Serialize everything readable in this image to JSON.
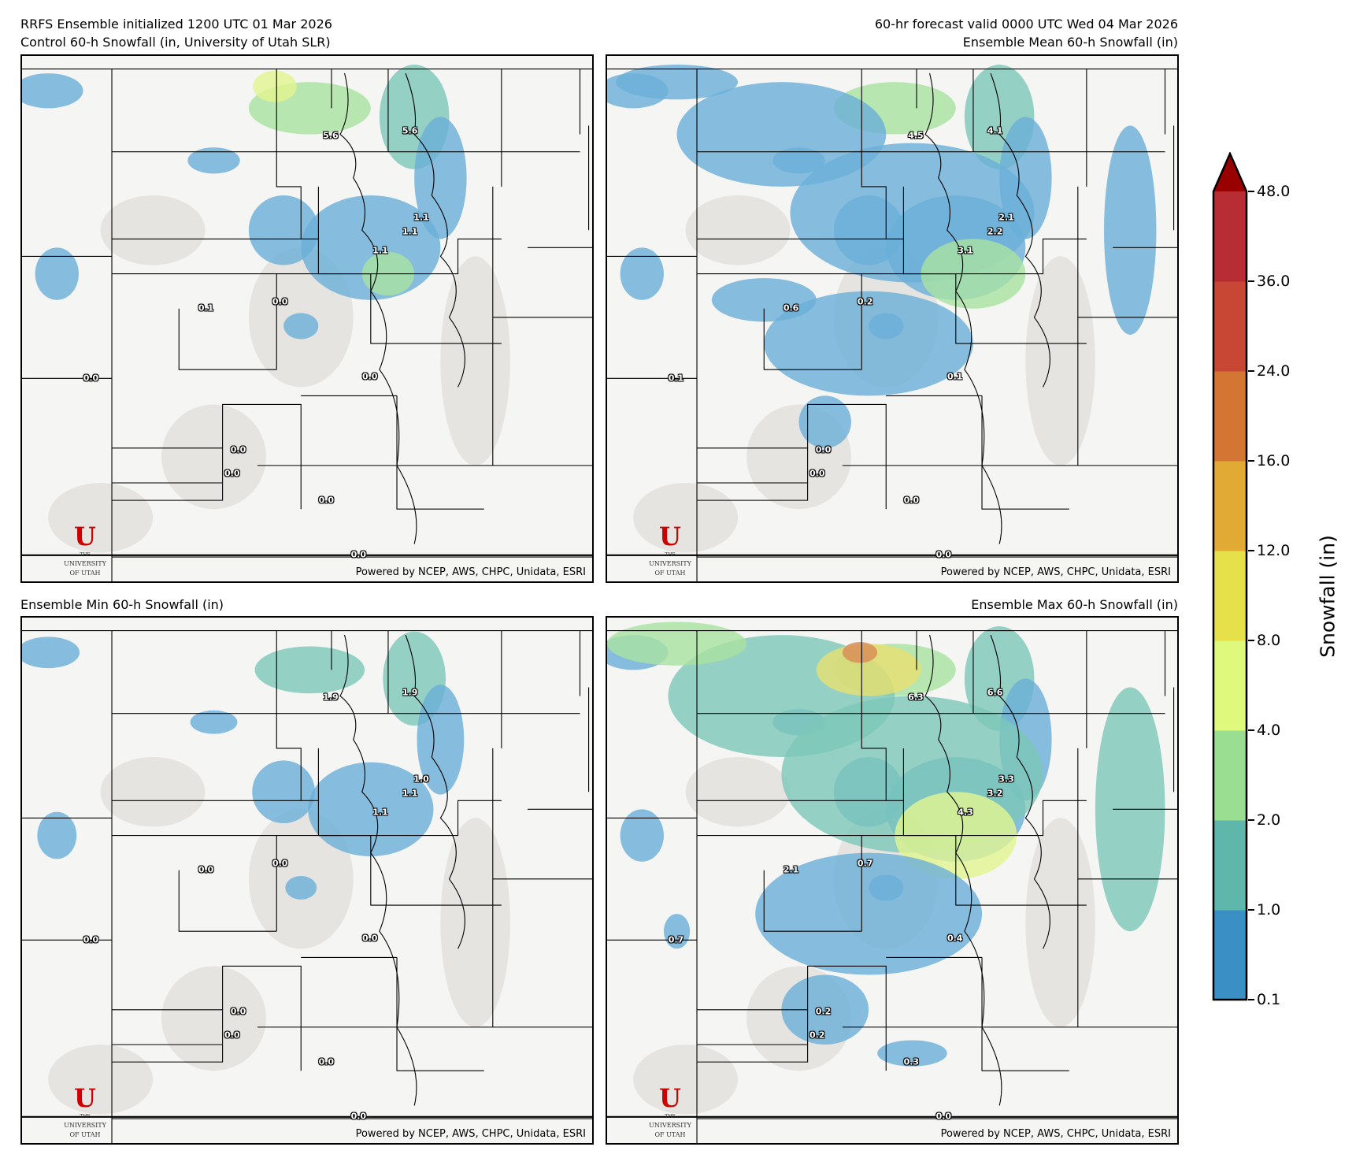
{
  "header": {
    "left_line1": "RRFS Ensemble initialized 1200 UTC 01 Mar 2026",
    "right_line1": "60-hr forecast valid 0000 UTC Wed 04 Mar 2026"
  },
  "credit": "Powered by NCEP, AWS, CHPC, Unidata, ESRI",
  "logo": {
    "the": "THE",
    "u": "U",
    "university": "UNIVERSITY",
    "of_utah": "OF UTAH"
  },
  "chart_data": [
    {
      "type": "heatmap",
      "title": "Control 60-h Snowfall (in, University of Utah SLR)",
      "point_labels": [
        "5.6",
        "5.6",
        "1.1",
        "1.1",
        "1.1",
        "0.1",
        "0.0",
        "0.0",
        "0.0",
        "0.0",
        "0.0",
        "0.0",
        "0.0"
      ]
    },
    {
      "type": "heatmap",
      "title": "Ensemble Mean 60-h Snowfall (in)",
      "point_labels": [
        "4.5",
        "4.1",
        "2.1",
        "2.2",
        "3.1",
        "0.6",
        "0.2",
        "0.1",
        "0.1",
        "0.0",
        "0.0",
        "0.0",
        "0.0"
      ]
    },
    {
      "type": "heatmap",
      "title": "Ensemble Min 60-h Snowfall (in)",
      "point_labels": [
        "1.9",
        "1.9",
        "1.0",
        "1.1",
        "1.1",
        "0.0",
        "0.0",
        "0.0",
        "0.0",
        "0.0",
        "0.0",
        "0.0",
        "0.0"
      ]
    },
    {
      "type": "heatmap",
      "title": "Ensemble Max 60-h Snowfall (in)",
      "point_labels": [
        "6.3",
        "6.6",
        "3.3",
        "3.2",
        "4.3",
        "2.1",
        "0.7",
        "0.7",
        "0.4",
        "0.2",
        "0.2",
        "0.3",
        "0.0"
      ]
    }
  ],
  "colorbar": {
    "label": "Snowfall (in)",
    "ticks": [
      "0.1",
      "1.0",
      "2.0",
      "4.0",
      "8.0",
      "12.0",
      "16.0",
      "24.0",
      "36.0",
      "48.0"
    ],
    "colors": [
      "#3a8fc4",
      "#5fb7ab",
      "#9ade92",
      "#dff97c",
      "#e6e04a",
      "#e0aa35",
      "#d47633",
      "#c84734",
      "#b82c33"
    ],
    "extend_color": "#990000",
    "extend": "max"
  }
}
